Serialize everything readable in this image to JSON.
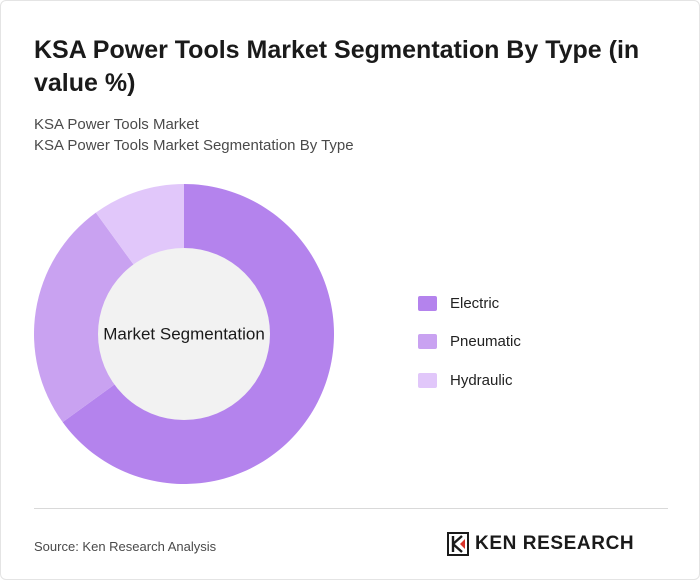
{
  "title": "KSA Power Tools Market Segmentation By Type (in value %)",
  "subtitle_1": "KSA Power Tools Market",
  "subtitle_2": "KSA Power Tools Market Segmentation By Type",
  "source": "Source: Ken Research Analysis",
  "logo_text": "KEN RESEARCH",
  "chart_data": {
    "type": "pie",
    "style": "donut",
    "center_label": "Market Segmentation",
    "legend_position": "right",
    "categories": [
      "Electric",
      "Pneumatic",
      "Hydraulic"
    ],
    "values": [
      65,
      25,
      10
    ],
    "colors": [
      "#b483ed",
      "#c9a2f1",
      "#e1c7fa"
    ]
  }
}
